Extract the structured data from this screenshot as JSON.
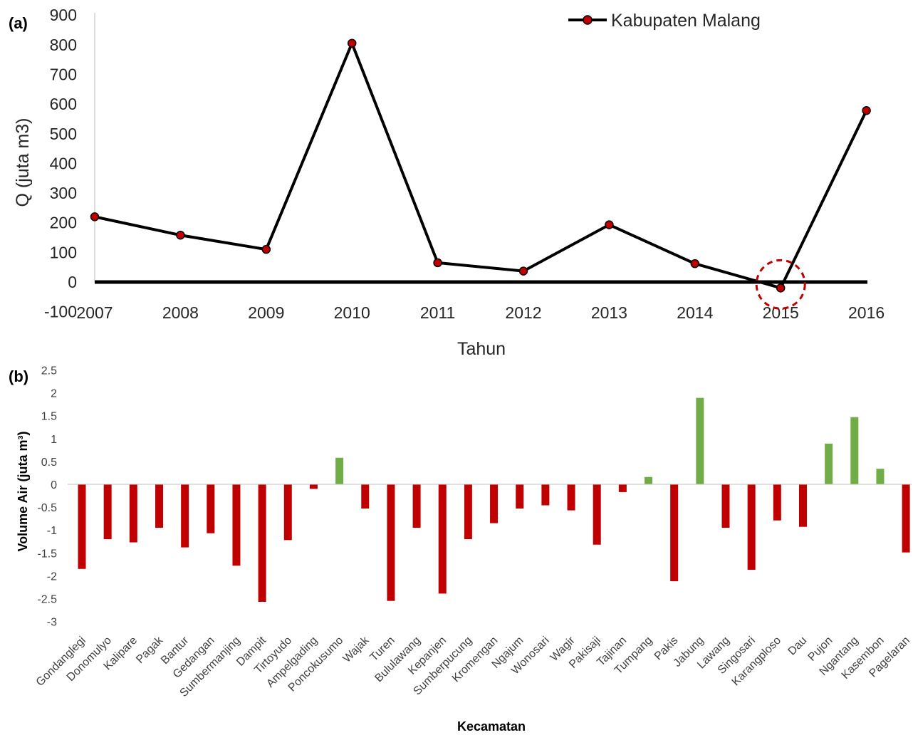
{
  "chart_data": [
    {
      "type": "line",
      "panel_label": "(a)",
      "title": "",
      "xlabel": "Tahun",
      "ylabel": "Q (juta m3)",
      "ylim": [
        -100,
        900
      ],
      "yticks": [
        "-100",
        "0",
        "100",
        "200",
        "300",
        "400",
        "500",
        "600",
        "700",
        "800",
        "900"
      ],
      "x": [
        "2007",
        "2008",
        "2009",
        "2010",
        "2011",
        "2012",
        "2013",
        "2014",
        "2015",
        "2016"
      ],
      "series": [
        {
          "name": "Kabupaten Malang",
          "values": [
            220,
            158,
            110,
            805,
            65,
            37,
            193,
            62,
            -20,
            578
          ]
        }
      ],
      "legend_position": "top-right",
      "highlight": {
        "x": "2015",
        "style": "dashed-circle"
      },
      "grid": false
    },
    {
      "type": "bar",
      "panel_label": "(b)",
      "title": "",
      "xlabel": "Kecamatan",
      "ylabel": "Volume Air (juta m³)",
      "ylim": [
        -3,
        2.5
      ],
      "yticks": [
        "-3",
        "-2.5",
        "-2",
        "-1.5",
        "-1",
        "-0.5",
        "0",
        "0.5",
        "1",
        "1.5",
        "2",
        "2.5"
      ],
      "categories": [
        "Gondanglegi",
        "Donomulyo",
        "Kalipare",
        "Pagak",
        "Bantur",
        "Gedangan",
        "Sumbermanjing",
        "Dampit",
        "Tirtoyudo",
        "Ampelgading",
        "Poncokusumo",
        "Wajak",
        "Turen",
        "Bululawang",
        "Kepanjen",
        "Sumberpucung",
        "Kromengan",
        "Ngajum",
        "Wonosari",
        "Wagir",
        "Pakisaji",
        "Tajinan",
        "Tumpang",
        "Pakis",
        "Jabung",
        "Lawang",
        "Singosari",
        "Karangploso",
        "Dau",
        "Pujon",
        "Ngantang",
        "Kasembon",
        "Pagelaran"
      ],
      "values": [
        -1.85,
        -1.2,
        -1.27,
        -0.95,
        -1.38,
        -1.07,
        -1.78,
        -2.57,
        -1.22,
        -0.1,
        0.58,
        -0.53,
        -2.55,
        -0.95,
        -2.39,
        -1.2,
        -0.85,
        -0.53,
        -0.46,
        -0.57,
        -1.32,
        -0.17,
        0.16,
        -2.12,
        1.89,
        -0.95,
        -1.87,
        -0.79,
        -0.93,
        0.89,
        1.47,
        0.34,
        -1.49
      ],
      "colors": {
        "positive": "#70ad47",
        "negative": "#c00000"
      },
      "grid": false
    }
  ]
}
